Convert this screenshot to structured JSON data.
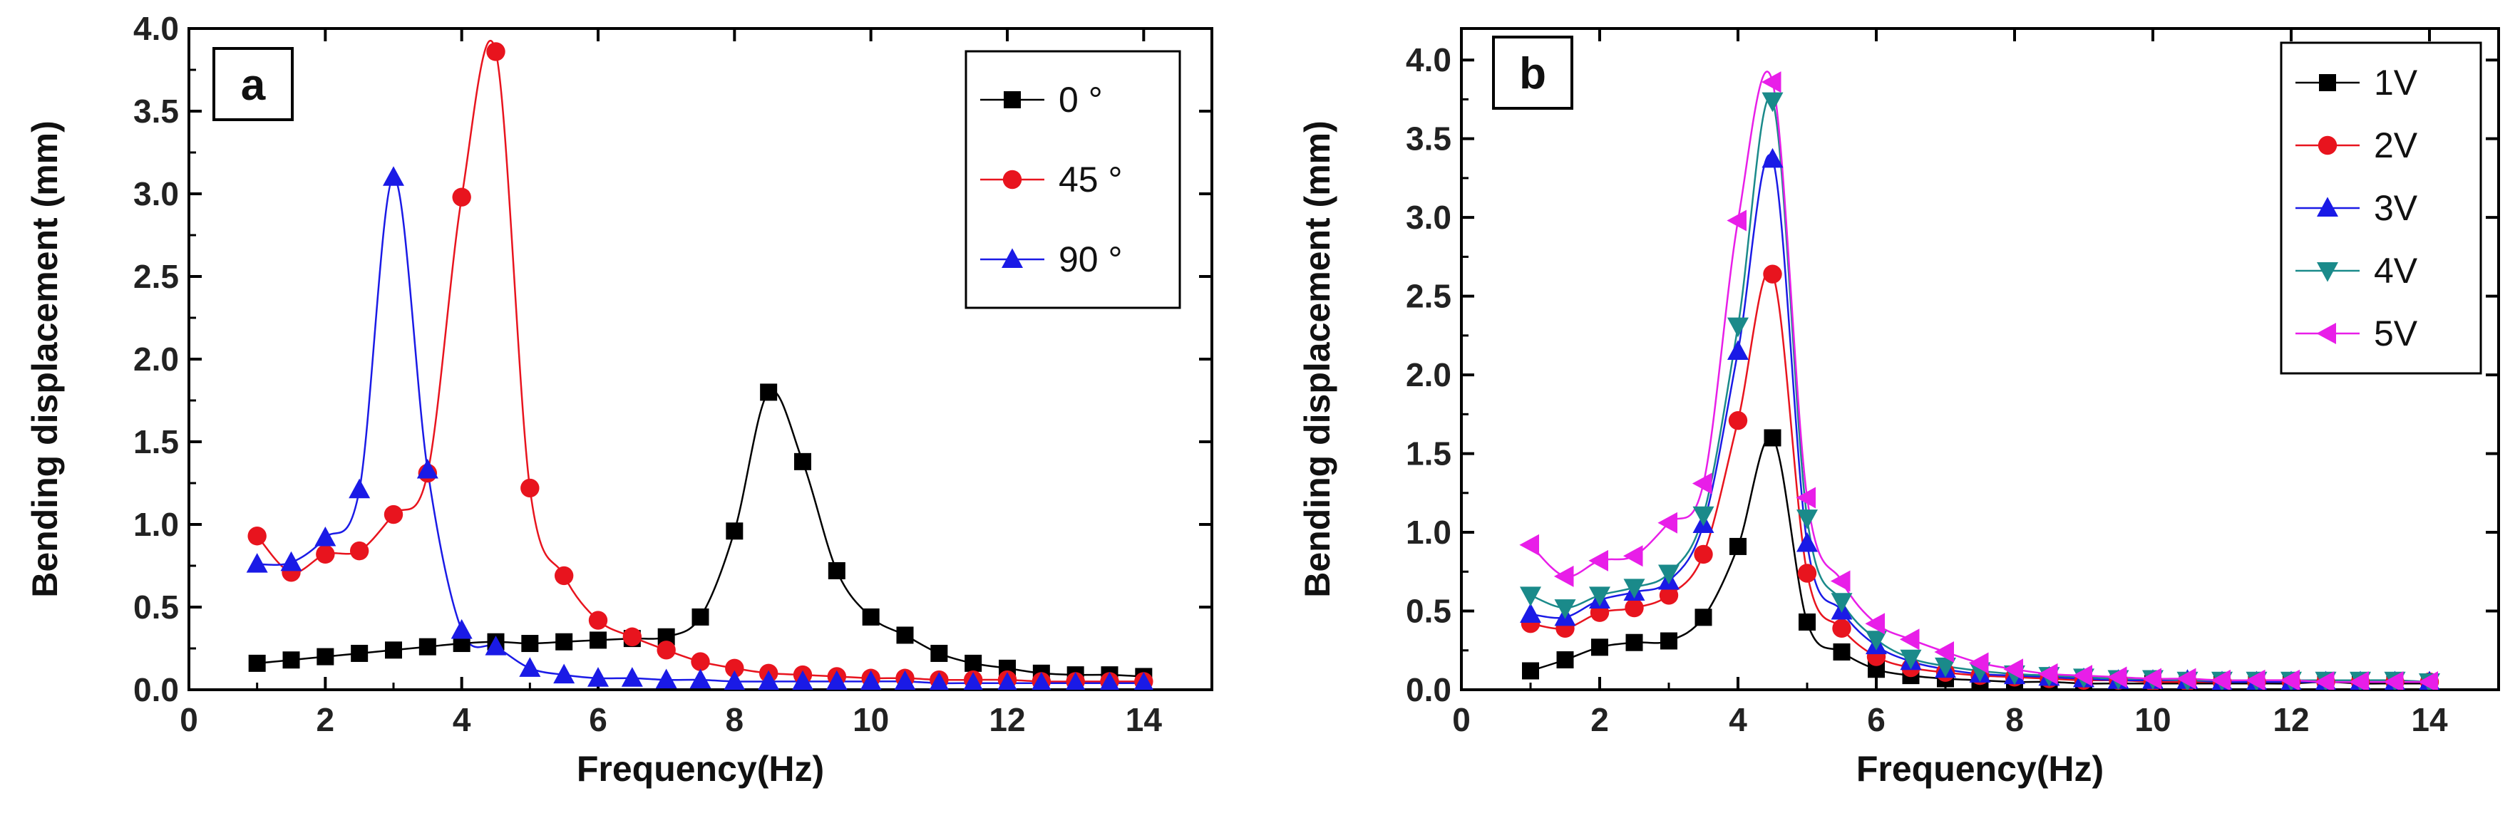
{
  "chart_data": [
    {
      "panel": "a",
      "type": "line",
      "xlabel": "Frequency(Hz)",
      "ylabel": "Bending displacement (mm)",
      "xlim": [
        0,
        15
      ],
      "ylim": [
        0,
        4.0
      ],
      "xticks": [
        0,
        2,
        4,
        6,
        8,
        10,
        12,
        14
      ],
      "yticks": [
        0.0,
        0.5,
        1.0,
        1.5,
        2.0,
        2.5,
        3.0,
        3.5,
        4.0
      ],
      "x": [
        1,
        1.5,
        2,
        2.5,
        3,
        3.5,
        4,
        4.5,
        5,
        5.5,
        6,
        6.5,
        7,
        7.5,
        8,
        8.5,
        9,
        9.5,
        10,
        10.5,
        11,
        11.5,
        12,
        12.5,
        13,
        13.5,
        14
      ],
      "series": [
        {
          "name": "0 °",
          "color": "#000000",
          "marker": "square",
          "values": [
            0.16,
            0.18,
            0.2,
            0.22,
            0.24,
            0.26,
            0.28,
            0.29,
            0.28,
            0.29,
            0.3,
            0.31,
            0.32,
            0.44,
            0.96,
            1.8,
            1.38,
            0.72,
            0.44,
            0.33,
            0.22,
            0.16,
            0.13,
            0.1,
            0.09,
            0.09,
            0.08
          ]
        },
        {
          "name": "45 °",
          "color": "#e8141e",
          "marker": "circle",
          "values": [
            0.93,
            0.71,
            0.82,
            0.84,
            1.06,
            1.31,
            2.98,
            3.86,
            1.22,
            0.69,
            0.42,
            0.32,
            0.24,
            0.17,
            0.13,
            0.1,
            0.09,
            0.08,
            0.07,
            0.07,
            0.06,
            0.06,
            0.06,
            0.05,
            0.05,
            0.05,
            0.05
          ]
        },
        {
          "name": "90 °",
          "color": "#1a1ae6",
          "marker": "triangle-up",
          "values": [
            0.76,
            0.77,
            0.92,
            1.21,
            3.1,
            1.33,
            0.36,
            0.26,
            0.13,
            0.09,
            0.07,
            0.07,
            0.06,
            0.06,
            0.05,
            0.05,
            0.05,
            0.05,
            0.05,
            0.05,
            0.04,
            0.04,
            0.04,
            0.04,
            0.04,
            0.04,
            0.04
          ]
        }
      ],
      "legend": "top-right"
    },
    {
      "panel": "b",
      "type": "line",
      "xlabel": "Frequency(Hz)",
      "ylabel": "Bending displacement (mm)",
      "xlim": [
        0,
        15
      ],
      "ylim": [
        0,
        4.2
      ],
      "xticks": [
        0,
        2,
        4,
        6,
        8,
        10,
        12,
        14
      ],
      "yticks": [
        0.0,
        0.5,
        1.0,
        1.5,
        2.0,
        2.5,
        3.0,
        3.5,
        4.0
      ],
      "x": [
        1,
        1.5,
        2,
        2.5,
        3,
        3.5,
        4,
        4.5,
        5,
        5.5,
        6,
        6.5,
        7,
        7.5,
        8,
        8.5,
        9,
        9.5,
        10,
        10.5,
        11,
        11.5,
        12,
        12.5,
        13,
        13.5,
        14
      ],
      "series": [
        {
          "name": "1V",
          "color": "#000000",
          "marker": "square",
          "values": [
            0.12,
            0.19,
            0.27,
            0.3,
            0.31,
            0.46,
            0.91,
            1.6,
            0.43,
            0.24,
            0.13,
            0.09,
            0.07,
            0.06,
            0.05,
            0.05,
            0.04,
            0.04,
            0.04,
            0.04,
            0.04,
            0.04,
            0.04,
            0.05,
            0.04,
            0.04,
            0.04
          ]
        },
        {
          "name": "2V",
          "color": "#e8141e",
          "marker": "circle",
          "values": [
            0.42,
            0.39,
            0.49,
            0.52,
            0.6,
            0.86,
            1.71,
            2.64,
            0.74,
            0.39,
            0.21,
            0.14,
            0.11,
            0.09,
            0.08,
            0.07,
            0.06,
            0.06,
            0.05,
            0.05,
            0.05,
            0.05,
            0.05,
            0.05,
            0.05,
            0.05,
            0.05
          ]
        },
        {
          "name": "3V",
          "color": "#1a1ae6",
          "marker": "triangle-up",
          "values": [
            0.48,
            0.46,
            0.57,
            0.62,
            0.69,
            1.05,
            2.15,
            3.37,
            0.93,
            0.5,
            0.28,
            0.18,
            0.13,
            0.1,
            0.09,
            0.08,
            0.07,
            0.06,
            0.06,
            0.06,
            0.05,
            0.05,
            0.05,
            0.05,
            0.05,
            0.05,
            0.05
          ]
        },
        {
          "name": "4V",
          "color": "#1a8a8a",
          "marker": "triangle-down",
          "values": [
            0.6,
            0.52,
            0.6,
            0.65,
            0.74,
            1.11,
            2.31,
            3.74,
            1.09,
            0.56,
            0.32,
            0.2,
            0.15,
            0.12,
            0.1,
            0.09,
            0.08,
            0.07,
            0.07,
            0.06,
            0.06,
            0.06,
            0.06,
            0.06,
            0.06,
            0.06,
            0.05
          ]
        },
        {
          "name": "5V",
          "color": "#e81ee8",
          "marker": "triangle-left",
          "values": [
            0.92,
            0.72,
            0.82,
            0.85,
            1.06,
            1.31,
            2.98,
            3.86,
            1.22,
            0.69,
            0.42,
            0.32,
            0.24,
            0.17,
            0.13,
            0.1,
            0.09,
            0.08,
            0.07,
            0.07,
            0.06,
            0.06,
            0.06,
            0.05,
            0.05,
            0.05,
            0.05
          ]
        }
      ],
      "legend": "top-right"
    }
  ]
}
